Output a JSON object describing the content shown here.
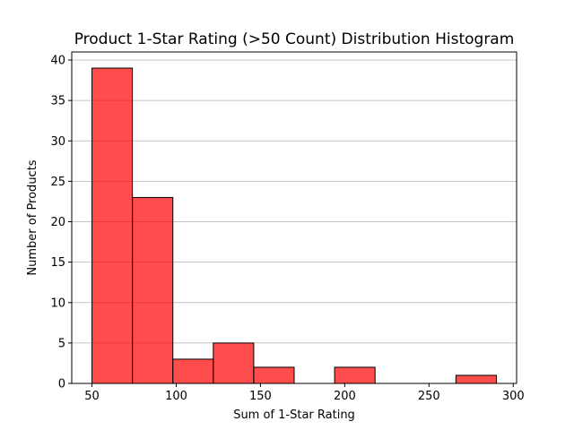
{
  "chart_data": {
    "type": "bar",
    "title": "Product 1-Star Rating (>50 Count) Distribution Histogram",
    "xlabel": "Sum of 1-Star Rating",
    "ylabel": "Number of Products",
    "xlim": [
      38,
      302
    ],
    "ylim": [
      0,
      41
    ],
    "xticks": [
      50,
      100,
      150,
      200,
      250,
      300
    ],
    "yticks": [
      0,
      5,
      10,
      15,
      20,
      25,
      30,
      35,
      40
    ],
    "grid": "y-axis",
    "bar_color": "#ff0000",
    "bar_alpha": 0.7,
    "edge_color": "#000000",
    "bins": [
      {
        "x0": 50,
        "x1": 74,
        "count": 39
      },
      {
        "x0": 74,
        "x1": 98,
        "count": 23
      },
      {
        "x0": 98,
        "x1": 122,
        "count": 3
      },
      {
        "x0": 122,
        "x1": 146,
        "count": 5
      },
      {
        "x0": 146,
        "x1": 170,
        "count": 2
      },
      {
        "x0": 170,
        "x1": 194,
        "count": 0
      },
      {
        "x0": 194,
        "x1": 218,
        "count": 2
      },
      {
        "x0": 218,
        "x1": 242,
        "count": 0
      },
      {
        "x0": 242,
        "x1": 266,
        "count": 0
      },
      {
        "x0": 266,
        "x1": 290,
        "count": 1
      }
    ]
  }
}
